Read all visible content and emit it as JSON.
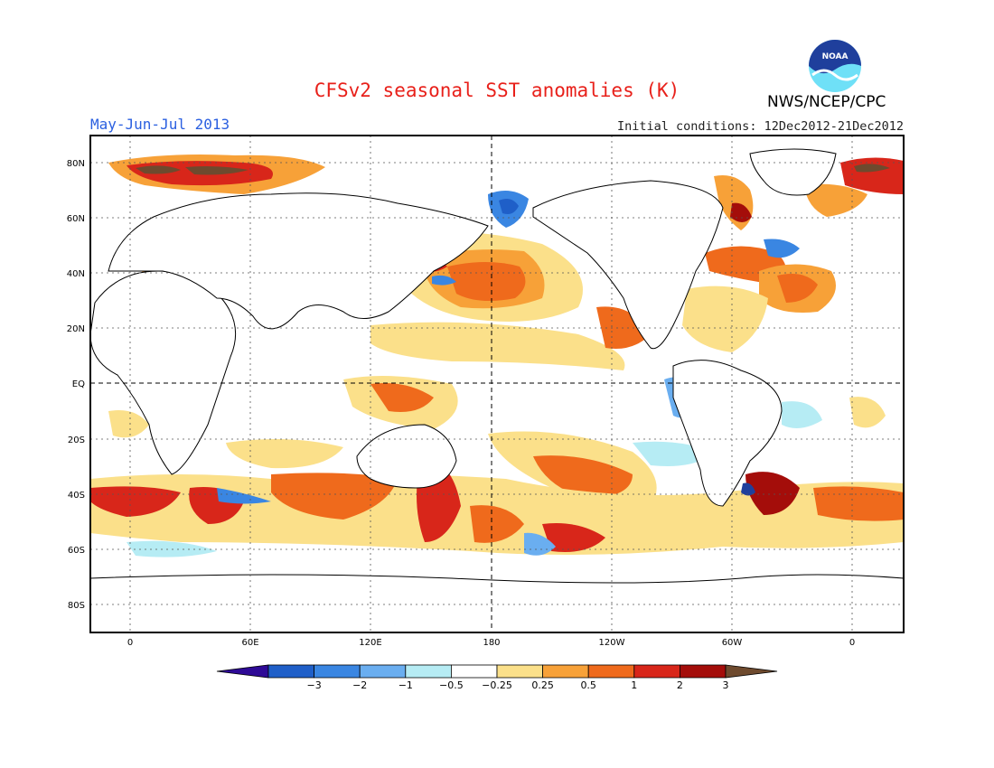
{
  "header": {
    "title": "CFSv2 seasonal SST anomalies (K)",
    "period": "May-Jun-Jul 2013",
    "initial_conditions": "Initial conditions: 12Dec2012-21Dec2012",
    "agency": "NWS/NCEP/CPC",
    "logo_text": "NOAA"
  },
  "map": {
    "lat_labels": [
      "80N",
      "60N",
      "40N",
      "20N",
      "EQ",
      "20S",
      "40S",
      "60S",
      "80S"
    ],
    "lon_labels": [
      "0",
      "60E",
      "120E",
      "180",
      "120W",
      "60W",
      "0"
    ]
  },
  "colorbar": {
    "labels": [
      "-3",
      "-2",
      "-1",
      "-0.5",
      "-0.25",
      "0.25",
      "0.5",
      "1",
      "2",
      "3"
    ],
    "colors": [
      "#2e0a96",
      "#1f5fc8",
      "#3a86e2",
      "#6aaef0",
      "#b6ecf4",
      "#ffffff",
      "#fbe08a",
      "#f7a138",
      "#ef6a1c",
      "#d8261a",
      "#a40d0a",
      "#6e4a2e"
    ]
  }
}
